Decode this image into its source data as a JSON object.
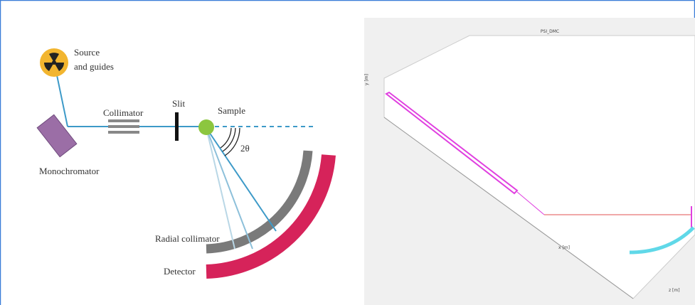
{
  "left_diagram": {
    "labels": {
      "source": [
        "Source",
        "and guides"
      ],
      "monochromator": "Monochromator",
      "collimator": "Collimator",
      "slit": "Slit",
      "sample": "Sample",
      "angle": "2θ",
      "radial_collimator": "Radial collimator",
      "detector": "Detector"
    }
  },
  "right_plot": {
    "title": "PSI_DMC",
    "axis_labels": {
      "y": "y [m]",
      "x": "x [m]",
      "z": "z [m]"
    }
  }
}
